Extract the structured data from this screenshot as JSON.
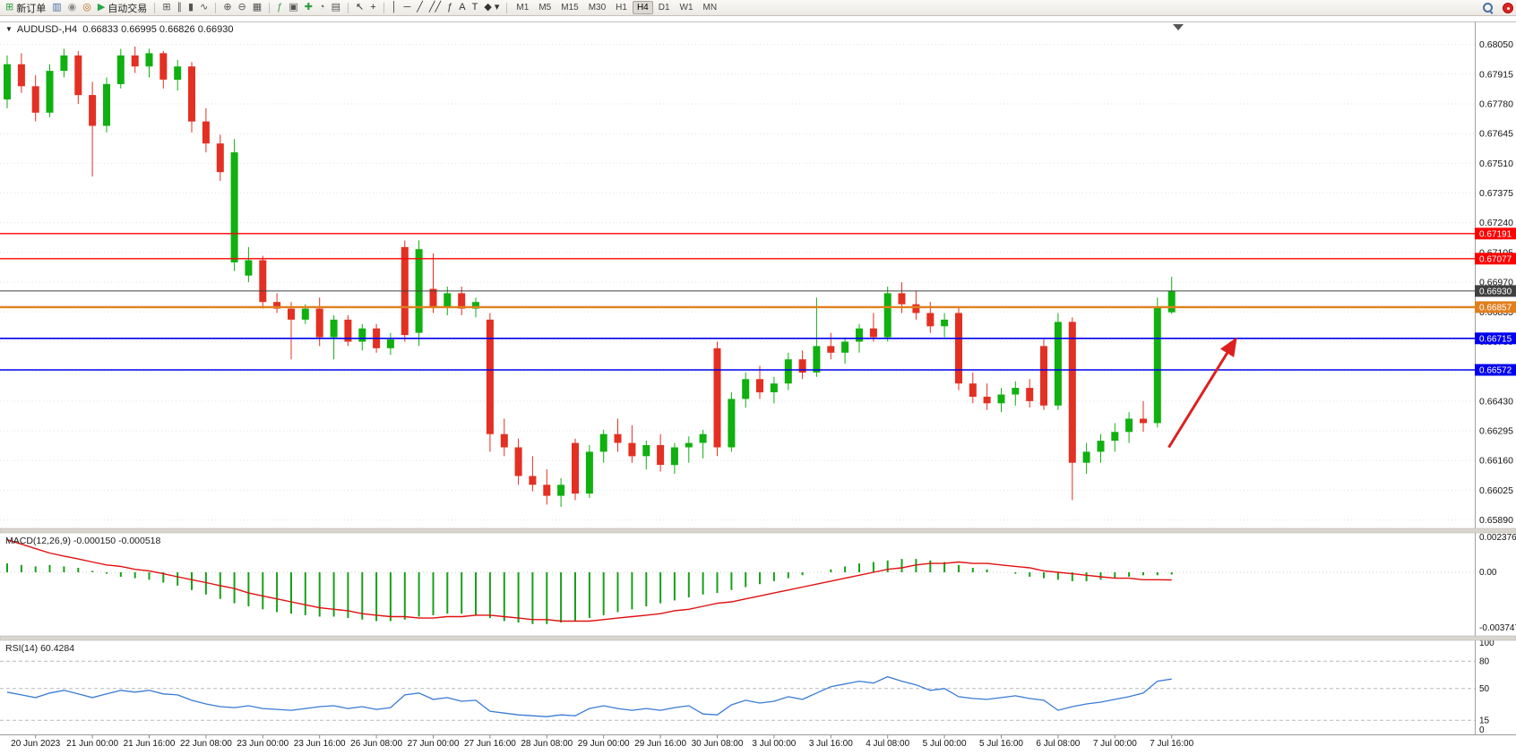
{
  "chart": {
    "title": "AUDUSD-,H4  0.66833 0.66995 0.66826 0.66930",
    "symbol": "AUDUSD-",
    "period": "H4",
    "dropdown_glyph": "▼"
  },
  "macd": {
    "label": "MACD(12,26,9) -0.000150 -0.000518"
  },
  "rsi": {
    "label": "RSI(14) 60.4284"
  },
  "toolbar": {
    "groups": [
      [
        {
          "name": "new-order-button",
          "glyph": "⊞",
          "glyph_color": "#2f9e44",
          "label": "新订单"
        },
        {
          "name": "market-watch-icon",
          "glyph": "▥",
          "glyph_color": "#4a6fa5"
        },
        {
          "name": "data-window-icon",
          "glyph": "◉",
          "glyph_color": "#8a8a8a"
        },
        {
          "name": "navigator-icon",
          "glyph": "◎",
          "glyph_color": "#b5651d"
        },
        {
          "name": "autotrading-button",
          "glyph": "▶",
          "glyph_color": "#28a745",
          "label": "自动交易"
        }
      ],
      [
        {
          "name": "new-chart-icon",
          "glyph": "⊞",
          "glyph_color": "#555555"
        },
        {
          "name": "bar-chart-icon",
          "glyph": "∥",
          "glyph_color": "#555555"
        },
        {
          "name": "candlestick-chart-icon",
          "glyph": "▮",
          "glyph_color": "#555555"
        },
        {
          "name": "line-chart-icon",
          "glyph": "∿",
          "glyph_color": "#555555"
        }
      ],
      [
        {
          "name": "zoom-in-icon",
          "glyph": "⊕",
          "glyph_color": "#555555"
        },
        {
          "name": "zoom-out-icon",
          "glyph": "⊖",
          "glyph_color": "#555555"
        },
        {
          "name": "tile-windows-icon",
          "glyph": "▦",
          "glyph_color": "#555555"
        }
      ],
      [
        {
          "name": "indicators-icon",
          "glyph": "ƒ",
          "glyph_color": "#2f9e44"
        },
        {
          "name": "objects-list-icon",
          "glyph": "▣",
          "glyph_color": "#555555"
        },
        {
          "name": "add-indicator-icon",
          "glyph": "✚",
          "glyph_color": "#2f9e44"
        },
        {
          "name": "period-icon",
          "glyph": "◔",
          "glyph_color": "#555555"
        },
        {
          "name": "templates-icon",
          "glyph": "▤",
          "glyph_color": "#555555"
        }
      ],
      [
        {
          "name": "cursor-icon",
          "glyph": "↖",
          "glyph_color": "#333333"
        },
        {
          "name": "crosshair-icon",
          "glyph": "+",
          "glyph_color": "#333333"
        }
      ],
      [
        {
          "name": "vertical-line-icon",
          "glyph": "│",
          "glyph_color": "#333333"
        },
        {
          "name": "horizontal-line-icon",
          "glyph": "─",
          "glyph_color": "#333333"
        },
        {
          "name": "trendline-icon",
          "glyph": "╱",
          "glyph_color": "#333333"
        },
        {
          "name": "channel-icon",
          "glyph": "╱╱",
          "glyph_color": "#333333"
        },
        {
          "name": "fibonacci-icon",
          "glyph": "ƒ",
          "glyph_color": "#333333"
        },
        {
          "name": "text-icon",
          "glyph": "A",
          "glyph_color": "#333333"
        },
        {
          "name": "text-label-icon",
          "glyph": "T",
          "glyph_color": "#333333"
        },
        {
          "name": "arrows-icon",
          "glyph": "◆ ▾",
          "glyph_color": "#333333"
        }
      ]
    ],
    "timeframes": {
      "items": [
        "M1",
        "M5",
        "M15",
        "M30",
        "H1",
        "H4",
        "D1",
        "W1",
        "MN"
      ],
      "active": "H4"
    },
    "right_icons": [
      {
        "name": "search-icon"
      },
      {
        "name": "notification-badge",
        "color": "#e02020"
      }
    ]
  },
  "chart_data": [
    {
      "type": "candlestick",
      "title": "AUDUSD-,H4",
      "ohlc_current": {
        "open": 0.66833,
        "high": 0.66995,
        "low": 0.66826,
        "close": 0.6693
      },
      "x_labels": [
        "20 Jun 2023",
        "21 Jun 00:00",
        "21 Jun 16:00",
        "22 Jun 08:00",
        "23 Jun 00:00",
        "23 Jun 16:00",
        "26 Jun 08:00",
        "27 Jun 00:00",
        "27 Jun 16:00",
        "28 Jun 08:00",
        "29 Jun 00:00",
        "29 Jun 16:00",
        "30 Jun 08:00",
        "3 Jul 00:00",
        "3 Jul 16:00",
        "4 Jul 08:00",
        "5 Jul 00:00",
        "5 Jul 16:00",
        "6 Jul 08:00",
        "7 Jul 00:00",
        "7 Jul 16:00"
      ],
      "bars_per_label": 4,
      "first_label_bar_index": 2,
      "ylim": [
        0.6586,
        0.6815
      ],
      "y_ticks": [
        0.6805,
        0.67915,
        0.6778,
        0.67645,
        0.6751,
        0.67375,
        0.6724,
        0.67105,
        0.6697,
        0.66835,
        0.667,
        0.66565,
        0.6643,
        0.66295,
        0.6616,
        0.66025,
        0.6589
      ],
      "up_color": "#10b010",
      "down_color": "#e33022",
      "candles": [
        [
          0.678,
          0.68,
          0.6776,
          0.6796
        ],
        [
          0.6796,
          0.6801,
          0.6783,
          0.6786
        ],
        [
          0.6786,
          0.6791,
          0.677,
          0.6774
        ],
        [
          0.6774,
          0.6796,
          0.6772,
          0.6793
        ],
        [
          0.6793,
          0.6803,
          0.679,
          0.68
        ],
        [
          0.68,
          0.6802,
          0.6778,
          0.6782
        ],
        [
          0.6782,
          0.6788,
          0.6745,
          0.6768
        ],
        [
          0.6768,
          0.679,
          0.6765,
          0.6787
        ],
        [
          0.6787,
          0.6803,
          0.6785,
          0.68
        ],
        [
          0.68,
          0.6804,
          0.6792,
          0.6795
        ],
        [
          0.6795,
          0.6803,
          0.679,
          0.6801
        ],
        [
          0.6801,
          0.6802,
          0.6785,
          0.6789
        ],
        [
          0.6789,
          0.6798,
          0.6784,
          0.6795
        ],
        [
          0.6795,
          0.6797,
          0.6765,
          0.677
        ],
        [
          0.677,
          0.6776,
          0.6756,
          0.676
        ],
        [
          0.676,
          0.6764,
          0.6743,
          0.6747
        ],
        [
          0.6706,
          0.6762,
          0.6702,
          0.6756
        ],
        [
          0.67,
          0.6713,
          0.6697,
          0.6707
        ],
        [
          0.6707,
          0.6709,
          0.6685,
          0.6688
        ],
        [
          0.6688,
          0.6692,
          0.6683,
          0.6685
        ],
        [
          0.6685,
          0.6688,
          0.6662,
          0.668
        ],
        [
          0.668,
          0.6687,
          0.6678,
          0.6685
        ],
        [
          0.6685,
          0.669,
          0.6668,
          0.6672
        ],
        [
          0.6672,
          0.6682,
          0.6662,
          0.668
        ],
        [
          0.668,
          0.6682,
          0.6668,
          0.667
        ],
        [
          0.667,
          0.6678,
          0.6666,
          0.6676
        ],
        [
          0.6676,
          0.6678,
          0.6665,
          0.6667
        ],
        [
          0.6667,
          0.6674,
          0.6664,
          0.6671
        ],
        [
          0.6713,
          0.6716,
          0.667,
          0.6673
        ],
        [
          0.6674,
          0.6716,
          0.6668,
          0.6712
        ],
        [
          0.6694,
          0.671,
          0.6683,
          0.6686
        ],
        [
          0.6686,
          0.6695,
          0.6682,
          0.6692
        ],
        [
          0.6692,
          0.6695,
          0.6682,
          0.6685
        ],
        [
          0.6685,
          0.669,
          0.6681,
          0.6688
        ],
        [
          0.668,
          0.6683,
          0.662,
          0.6628
        ],
        [
          0.6628,
          0.6635,
          0.6618,
          0.6622
        ],
        [
          0.6622,
          0.6626,
          0.6605,
          0.6609
        ],
        [
          0.6609,
          0.6618,
          0.6602,
          0.6605
        ],
        [
          0.6605,
          0.6612,
          0.6596,
          0.66
        ],
        [
          0.66,
          0.6608,
          0.6595,
          0.6605
        ],
        [
          0.6624,
          0.6626,
          0.6598,
          0.6601
        ],
        [
          0.6601,
          0.6623,
          0.6599,
          0.662
        ],
        [
          0.662,
          0.663,
          0.6615,
          0.6628
        ],
        [
          0.6628,
          0.6635,
          0.662,
          0.6624
        ],
        [
          0.6624,
          0.6632,
          0.6615,
          0.6618
        ],
        [
          0.6618,
          0.6625,
          0.6612,
          0.6623
        ],
        [
          0.6623,
          0.6628,
          0.6611,
          0.6614
        ],
        [
          0.6614,
          0.6624,
          0.661,
          0.6622
        ],
        [
          0.6622,
          0.6627,
          0.6615,
          0.6624
        ],
        [
          0.6624,
          0.663,
          0.6617,
          0.6628
        ],
        [
          0.6667,
          0.667,
          0.6618,
          0.6622
        ],
        [
          0.6622,
          0.6647,
          0.662,
          0.6644
        ],
        [
          0.6644,
          0.6656,
          0.664,
          0.6653
        ],
        [
          0.6653,
          0.6659,
          0.6644,
          0.6647
        ],
        [
          0.6647,
          0.6654,
          0.6642,
          0.6651
        ],
        [
          0.6651,
          0.6665,
          0.6648,
          0.6662
        ],
        [
          0.6662,
          0.6666,
          0.6653,
          0.6656
        ],
        [
          0.6656,
          0.669,
          0.6654,
          0.6668
        ],
        [
          0.6668,
          0.6674,
          0.6662,
          0.6665
        ],
        [
          0.6665,
          0.6672,
          0.666,
          0.667
        ],
        [
          0.667,
          0.6678,
          0.6665,
          0.6676
        ],
        [
          0.6676,
          0.6683,
          0.667,
          0.6672
        ],
        [
          0.6672,
          0.6695,
          0.667,
          0.6692
        ],
        [
          0.6692,
          0.6697,
          0.6683,
          0.6687
        ],
        [
          0.6687,
          0.6693,
          0.668,
          0.6683
        ],
        [
          0.6683,
          0.6688,
          0.6674,
          0.6677
        ],
        [
          0.6677,
          0.6683,
          0.6672,
          0.668
        ],
        [
          0.6683,
          0.6686,
          0.6648,
          0.6651
        ],
        [
          0.6651,
          0.6656,
          0.6642,
          0.6645
        ],
        [
          0.6645,
          0.6651,
          0.6639,
          0.6642
        ],
        [
          0.6642,
          0.6649,
          0.6638,
          0.6646
        ],
        [
          0.6646,
          0.6652,
          0.6641,
          0.6649
        ],
        [
          0.6649,
          0.6653,
          0.664,
          0.6643
        ],
        [
          0.6668,
          0.6671,
          0.6639,
          0.6641
        ],
        [
          0.6641,
          0.6683,
          0.6639,
          0.6679
        ],
        [
          0.6679,
          0.6681,
          0.6598,
          0.6615
        ],
        [
          0.6615,
          0.6624,
          0.661,
          0.662
        ],
        [
          0.662,
          0.6628,
          0.6615,
          0.6625
        ],
        [
          0.6625,
          0.6633,
          0.662,
          0.6629
        ],
        [
          0.6629,
          0.6638,
          0.6624,
          0.6635
        ],
        [
          0.6635,
          0.6643,
          0.6629,
          0.6633
        ],
        [
          0.6633,
          0.669,
          0.6631,
          0.6686
        ],
        [
          0.66833,
          0.66995,
          0.66826,
          0.6693
        ]
      ],
      "price_lines": [
        {
          "name": "resistance-line-1",
          "price": 0.67191,
          "color": "#ff0000",
          "width": 1.3
        },
        {
          "name": "resistance-line-2",
          "price": 0.67077,
          "color": "#ff0000",
          "width": 1.3
        },
        {
          "name": "current-price-line",
          "price": 0.6693,
          "color": "#404040",
          "width": 1
        },
        {
          "name": "orange-level-line",
          "price": 0.66857,
          "color": "#e07f1e",
          "width": 2.4
        },
        {
          "name": "support-line-1",
          "price": 0.66715,
          "color": "#0000ee",
          "width": 1.6
        },
        {
          "name": "support-line-2",
          "price": 0.66572,
          "color": "#0000ee",
          "width": 1.6
        }
      ],
      "arrow_annotation": {
        "x1_bar": 81.8,
        "y1_price": 0.6622,
        "x2_bar": 86.5,
        "y2_price": 0.6671,
        "color": "#dd2020"
      }
    },
    {
      "type": "bar",
      "name": "MACD(12,26,9)",
      "current": {
        "macd": -0.00015,
        "signal": -0.000518
      },
      "y_ticks": [
        0.002376,
        0,
        -0.003747
      ],
      "y_tick_labels": [
        "0.002376",
        "0.00",
        "-0.003747"
      ],
      "histogram_color": "#18a018",
      "signal_color": "#e01010",
      "values_macd": [
        0.0006,
        0.0005,
        0.0004,
        0.0005,
        0.0004,
        0.0003,
        0.0001,
        -0.0001,
        -0.0003,
        -0.0004,
        -0.0005,
        -0.0007,
        -0.0009,
        -0.0012,
        -0.0015,
        -0.0018,
        -0.0021,
        -0.0023,
        -0.0025,
        -0.0027,
        -0.0028,
        -0.0029,
        -0.003,
        -0.003,
        -0.0031,
        -0.0032,
        -0.0033,
        -0.0033,
        -0.0032,
        -0.003,
        -0.0029,
        -0.0028,
        -0.0028,
        -0.0029,
        -0.0031,
        -0.0033,
        -0.0034,
        -0.0035,
        -0.0035,
        -0.0034,
        -0.0033,
        -0.0031,
        -0.0029,
        -0.0027,
        -0.0025,
        -0.0023,
        -0.0021,
        -0.0019,
        -0.0017,
        -0.0015,
        -0.0014,
        -0.0012,
        -0.001,
        -0.0008,
        -0.0006,
        -0.0004,
        -0.0002,
        0.0,
        0.0002,
        0.0004,
        0.0006,
        0.0007,
        0.0008,
        0.0009,
        0.0009,
        0.0008,
        0.0007,
        0.0005,
        0.0003,
        0.0002,
        0.0,
        -0.0001,
        -0.0003,
        -0.0004,
        -0.0005,
        -0.0006,
        -0.0006,
        -0.0005,
        -0.0004,
        -0.0003,
        -0.0002,
        -0.0002,
        -0.00015
      ],
      "values_signal": [
        0.0022,
        0.0019,
        0.0016,
        0.0013,
        0.0011,
        0.0009,
        0.0007,
        0.0005,
        0.0004,
        0.0002,
        0.0001,
        -0.0001,
        -0.0003,
        -0.0005,
        -0.0007,
        -0.0009,
        -0.0011,
        -0.0014,
        -0.0016,
        -0.0018,
        -0.002,
        -0.0022,
        -0.0024,
        -0.0025,
        -0.0026,
        -0.0028,
        -0.0029,
        -0.003,
        -0.003,
        -0.0031,
        -0.0031,
        -0.003,
        -0.003,
        -0.0029,
        -0.0029,
        -0.003,
        -0.0031,
        -0.0032,
        -0.0032,
        -0.0033,
        -0.0033,
        -0.0033,
        -0.0032,
        -0.0031,
        -0.003,
        -0.0029,
        -0.0028,
        -0.0026,
        -0.0025,
        -0.0023,
        -0.0021,
        -0.002,
        -0.0018,
        -0.0016,
        -0.0014,
        -0.0012,
        -0.001,
        -0.0008,
        -0.0006,
        -0.0004,
        -0.0002,
        0.0,
        0.0002,
        0.0003,
        0.0005,
        0.0006,
        0.0006,
        0.0007,
        0.0006,
        0.0006,
        0.0005,
        0.0004,
        0.0003,
        0.0001,
        0.0,
        -0.0001,
        -0.0002,
        -0.0003,
        -0.0004,
        -0.0004,
        -0.0005,
        -0.0005,
        -0.000518
      ]
    },
    {
      "type": "line",
      "name": "RSI(14)",
      "current": 60.4284,
      "ylim": [
        0,
        100
      ],
      "levels": [
        80,
        50,
        15
      ],
      "y_ticks": [
        100,
        80,
        50,
        15,
        0
      ],
      "y_tick_labels": [
        "100",
        "80",
        "50",
        "15",
        "0"
      ],
      "line_color": "#3a7bd5",
      "values": [
        46,
        43,
        40,
        45,
        48,
        44,
        40,
        44,
        48,
        46,
        48,
        44,
        43,
        37,
        33,
        30,
        29,
        31,
        28,
        27,
        26,
        28,
        30,
        31,
        28,
        30,
        27,
        29,
        43,
        45,
        38,
        40,
        36,
        37,
        25,
        23,
        21,
        20,
        19,
        21,
        20,
        28,
        31,
        28,
        26,
        28,
        26,
        29,
        31,
        22,
        21,
        32,
        37,
        34,
        36,
        41,
        38,
        45,
        52,
        55,
        58,
        56,
        63,
        58,
        54,
        48,
        50,
        41,
        39,
        38,
        40,
        42,
        39,
        37,
        26,
        30,
        33,
        35,
        38,
        41,
        45,
        58,
        60.4284
      ]
    }
  ]
}
